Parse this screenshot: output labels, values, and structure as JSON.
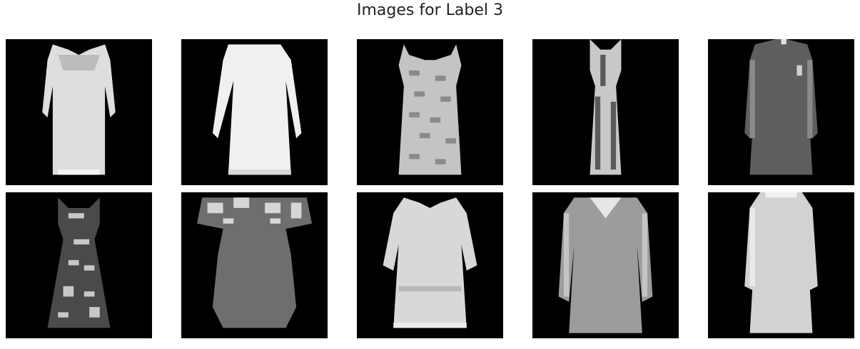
{
  "figure": {
    "title": "Images for Label 3"
  },
  "images": [
    {
      "name": "dress-1",
      "tone": "#dcdcdc"
    },
    {
      "name": "dress-2",
      "tone": "#eeeeee"
    },
    {
      "name": "dress-3",
      "tone": "#bdbdbd"
    },
    {
      "name": "dress-4",
      "tone": "#c8c8c8"
    },
    {
      "name": "dress-5",
      "tone": "#5e5e5e"
    },
    {
      "name": "dress-6",
      "tone": "#6b6b6b"
    },
    {
      "name": "dress-7",
      "tone": "#707070"
    },
    {
      "name": "dress-8",
      "tone": "#d7d7d7"
    },
    {
      "name": "dress-9",
      "tone": "#9c9c9c"
    },
    {
      "name": "dress-10",
      "tone": "#d0d0d0"
    }
  ]
}
